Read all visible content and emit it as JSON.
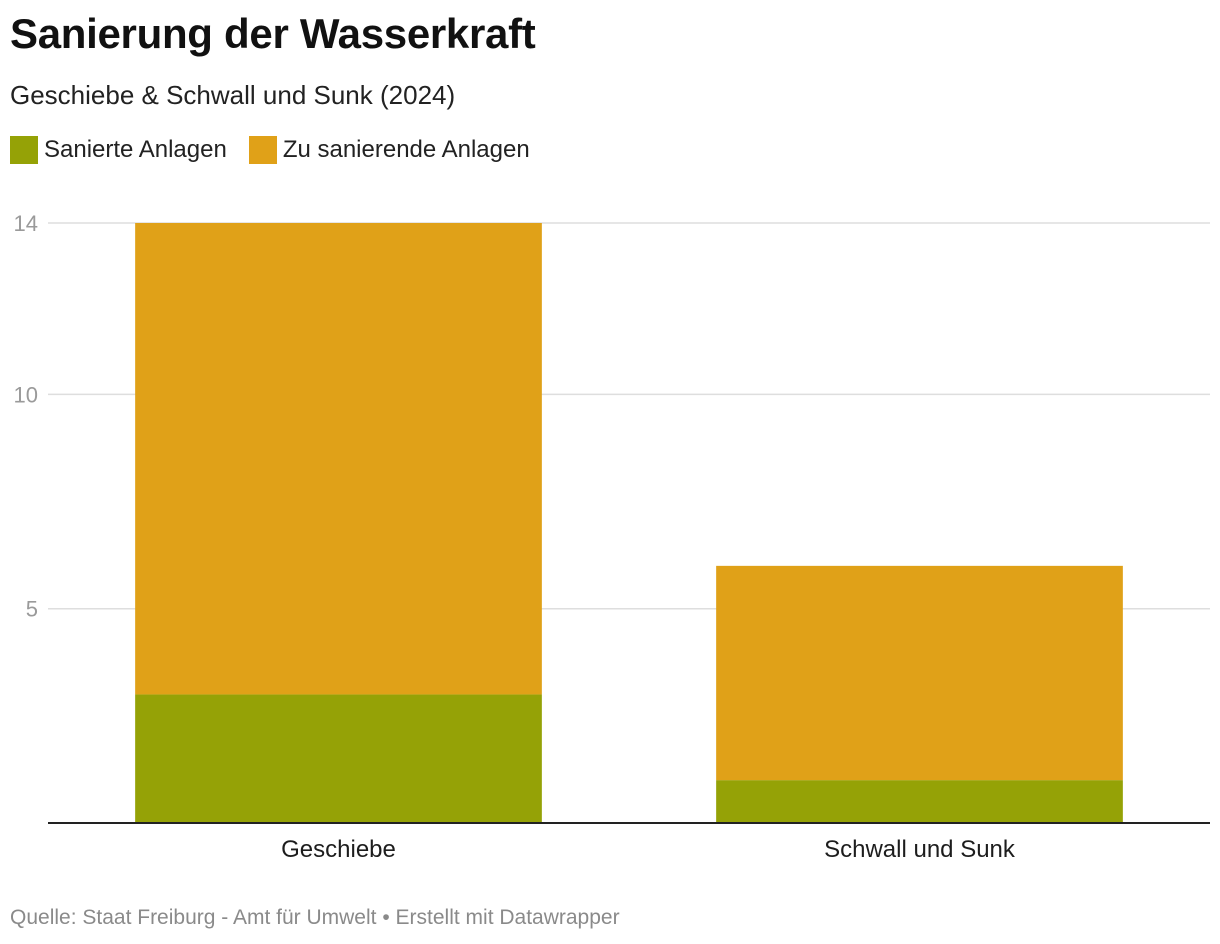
{
  "title": "Sanierung der Wasserkraft",
  "subtitle": "Geschiebe & Schwall und Sunk (2024)",
  "legend": [
    {
      "label": "Sanierte Anlagen",
      "color": "#95a206"
    },
    {
      "label": "Zu sanierende Anlagen",
      "color": "#e0a118"
    }
  ],
  "footer": {
    "source": "Quelle: Staat Freiburg - Amt für Umwelt",
    "separator": "•",
    "credit": "Erstellt mit Datawrapper"
  },
  "chart_data": {
    "type": "bar",
    "stacked": true,
    "categories": [
      "Geschiebe",
      "Schwall und Sunk"
    ],
    "series": [
      {
        "name": "Sanierte Anlagen",
        "values": [
          3,
          1
        ],
        "color": "#95a206"
      },
      {
        "name": "Zu sanierende Anlagen",
        "values": [
          11,
          5
        ],
        "color": "#e0a118"
      }
    ],
    "yticks": [
      5,
      10,
      14
    ],
    "ylim": [
      0,
      14
    ],
    "grid": true,
    "title": "Sanierung der Wasserkraft",
    "xlabel": "",
    "ylabel": ""
  }
}
